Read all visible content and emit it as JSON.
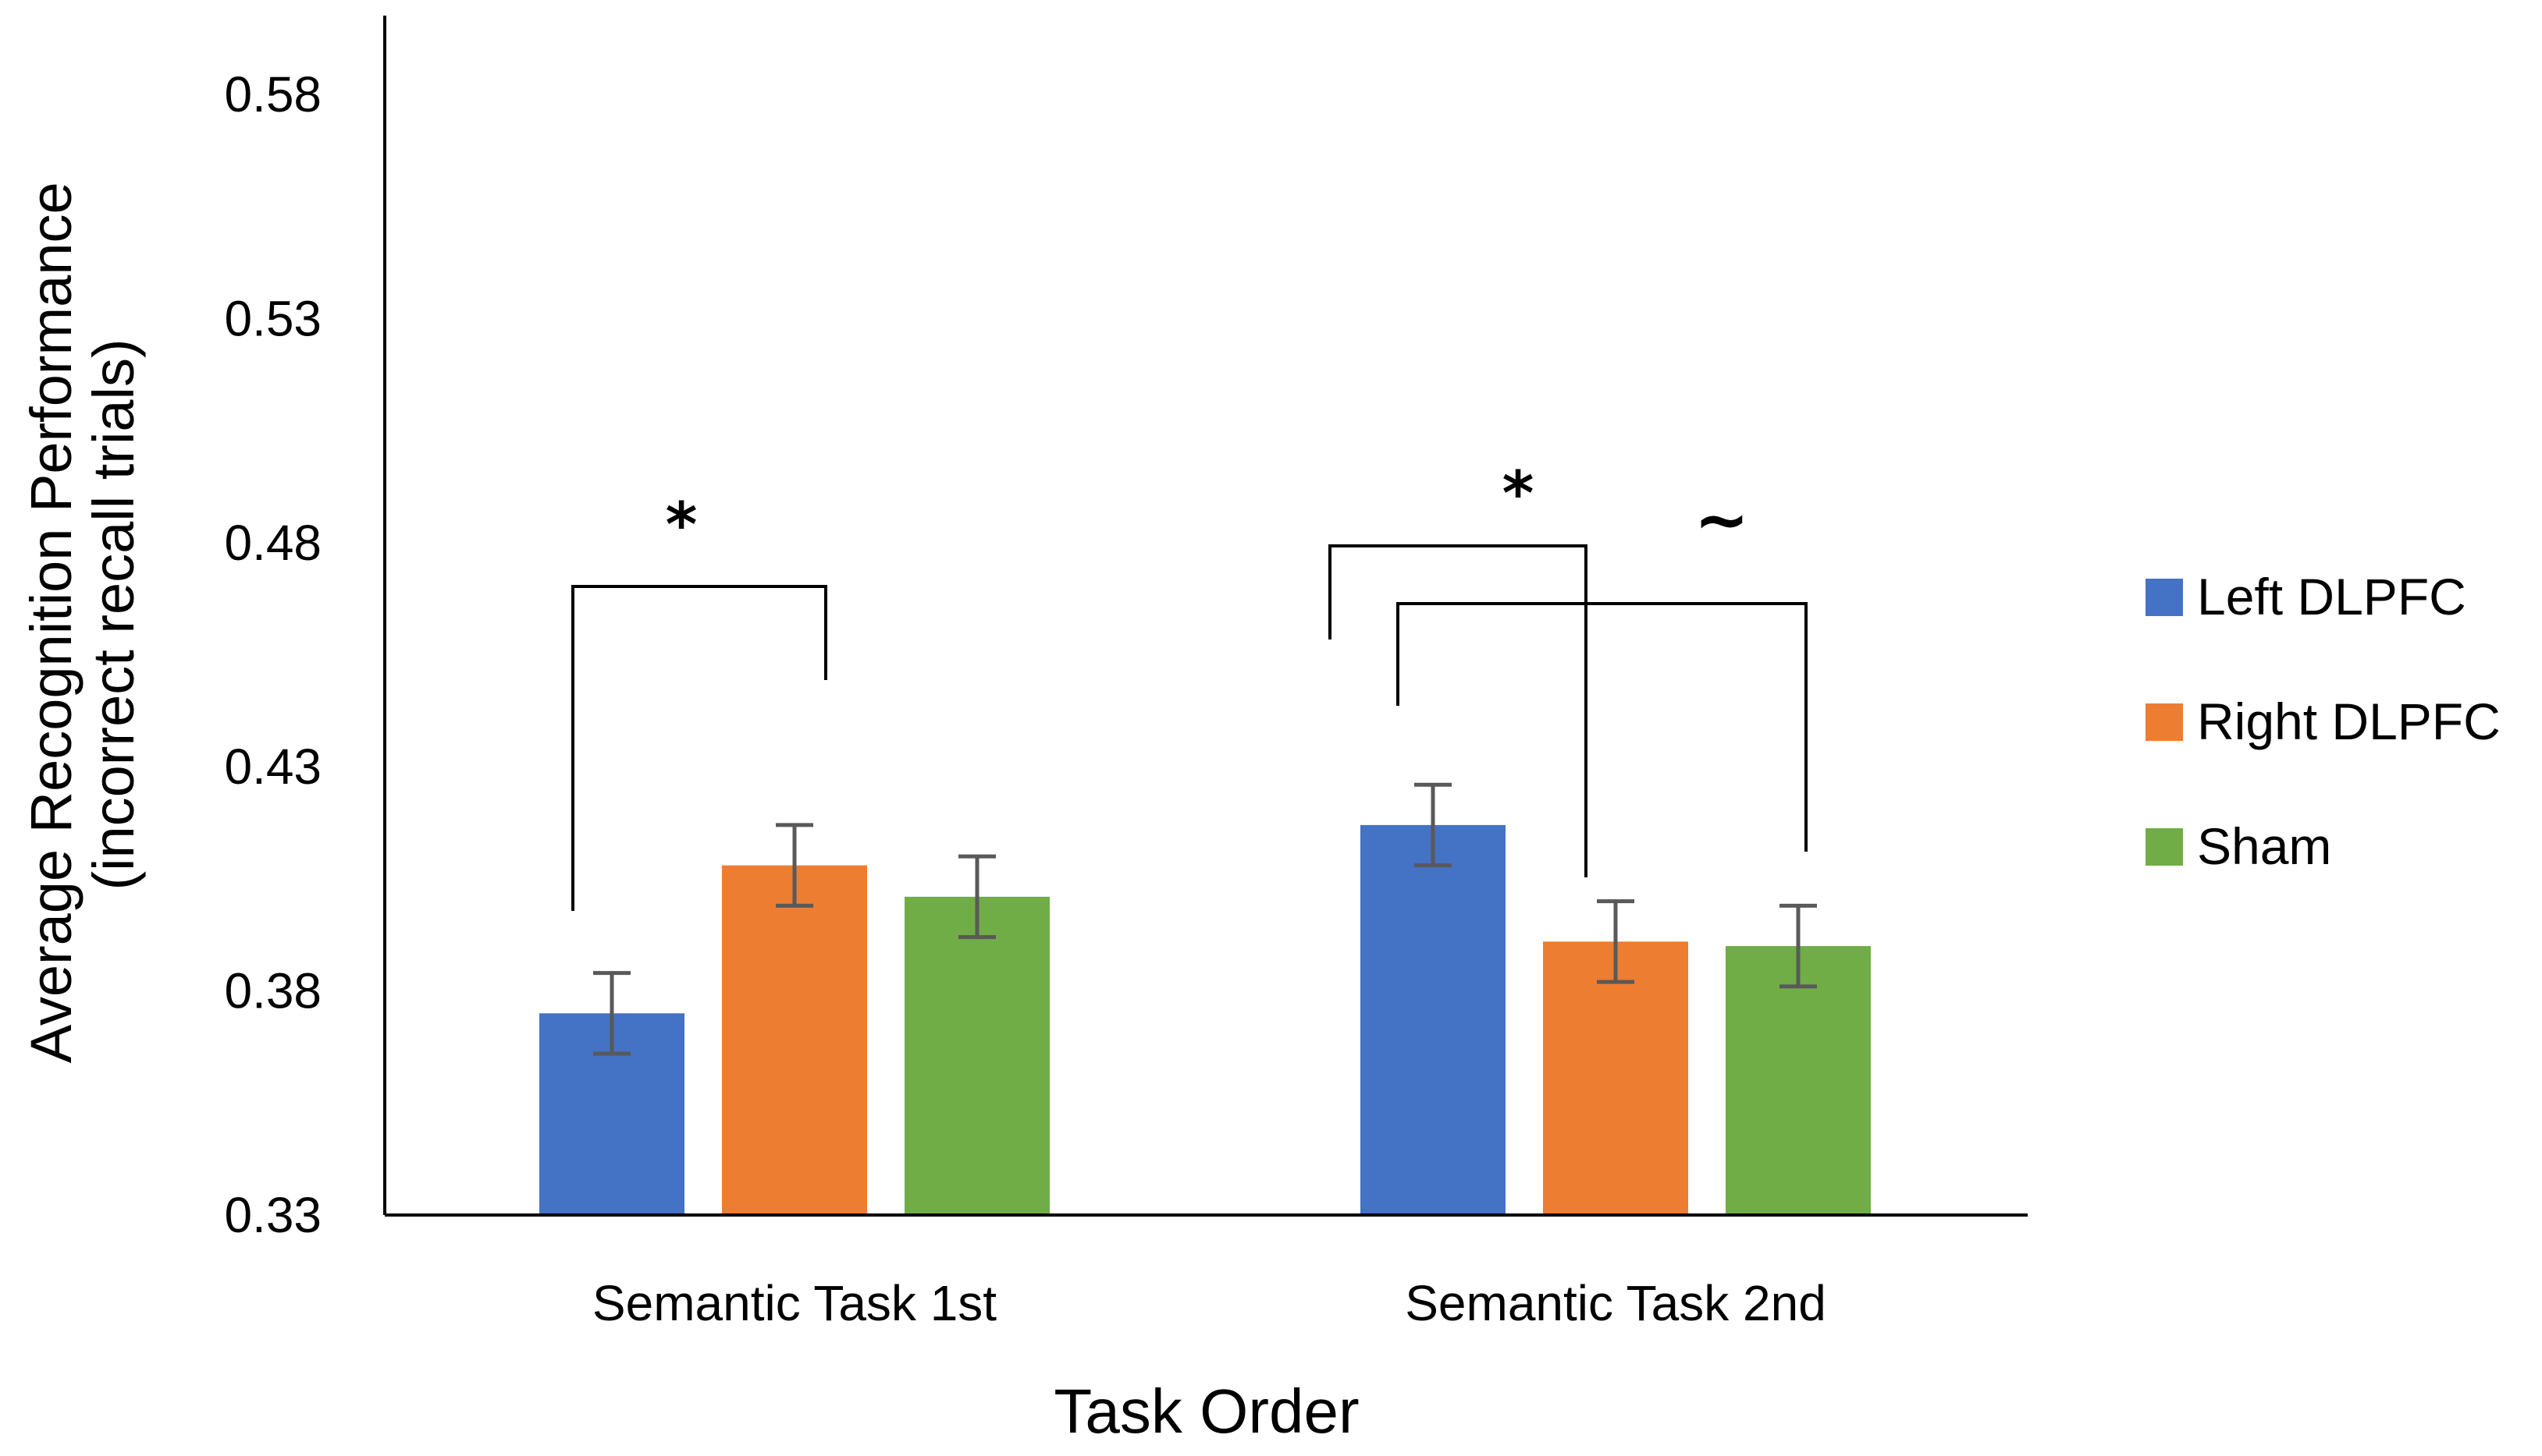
{
  "chart_data": {
    "type": "bar",
    "xlabel": "Task Order",
    "ylabel": [
      "Average Recognition Performance",
      "(incorrect recall trials)"
    ],
    "categories": [
      "Semantic Task 1st",
      "Semantic Task 2nd"
    ],
    "ylim": [
      0.33,
      0.6
    ],
    "yticks": [
      "0.33",
      "0.38",
      "0.43",
      "0.48",
      "0.53",
      "0.58"
    ],
    "grid": false,
    "legend_position": "right",
    "series": [
      {
        "name": "Left DLPFC",
        "color": "#4472c4",
        "values": [
          0.375,
          0.417
        ],
        "errors": [
          0.009,
          0.009
        ]
      },
      {
        "name": "Right DLPFC",
        "color": "#ed7d31",
        "values": [
          0.408,
          0.391
        ],
        "errors": [
          0.009,
          0.009
        ]
      },
      {
        "name": "Sham",
        "color": "#70ad47",
        "values": [
          0.401,
          0.39
        ],
        "errors": [
          0.009,
          0.009
        ]
      }
    ],
    "annotations": [
      {
        "text": "*",
        "category": 0,
        "from_series": 0,
        "to_series": 1
      },
      {
        "text": "*",
        "category": 1,
        "from_series": 0,
        "to_series": 1
      },
      {
        "text": "~",
        "category": 1,
        "from_series": 0,
        "to_series": 2
      }
    ]
  }
}
